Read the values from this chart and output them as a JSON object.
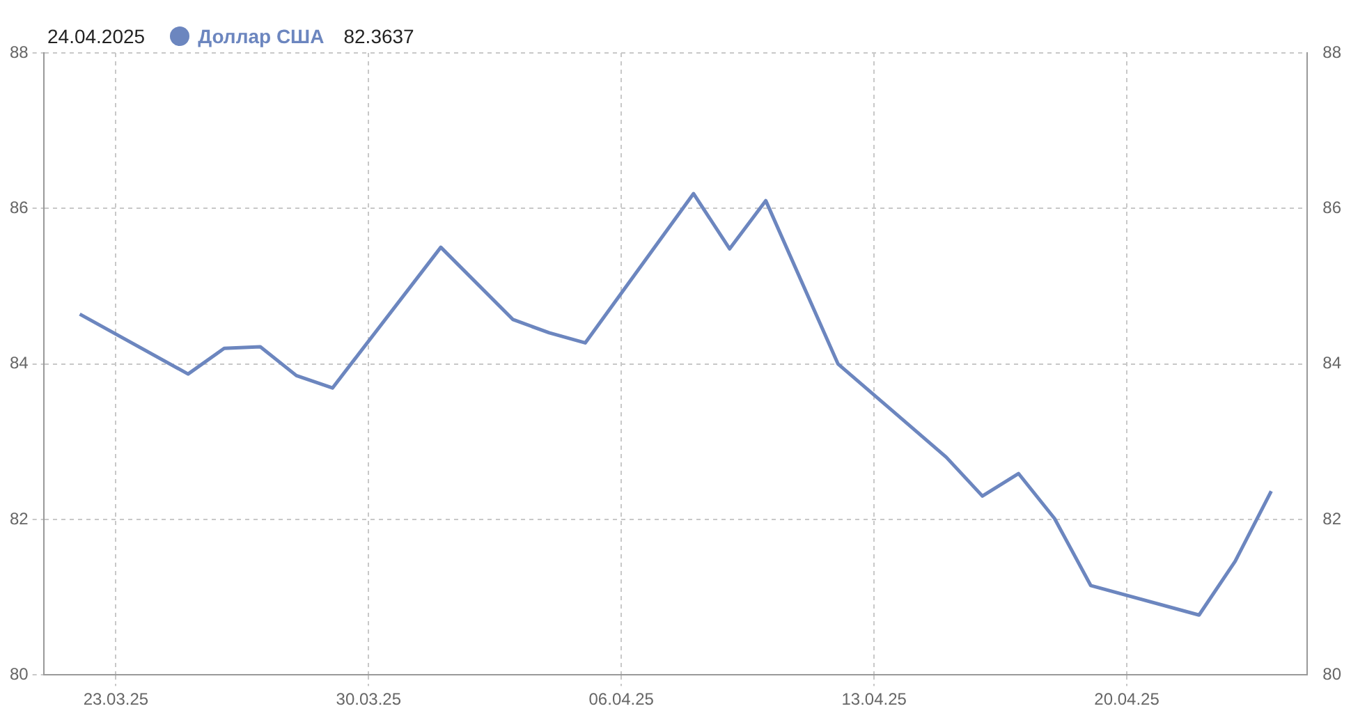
{
  "chart_data": {
    "type": "line",
    "legend": "top left",
    "annotations": [
      "24.04.2025",
      "82.3637"
    ],
    "x": [
      "2025-03-22",
      "2025-03-25",
      "2025-03-26",
      "2025-03-27",
      "2025-03-28",
      "2025-03-29",
      "2025-04-01",
      "2025-04-03",
      "2025-04-04",
      "2025-04-05",
      "2025-04-08",
      "2025-04-09",
      "2025-04-10",
      "2025-04-12",
      "2025-04-15",
      "2025-04-16",
      "2025-04-17",
      "2025-04-18",
      "2025-04-19",
      "2025-04-22",
      "2025-04-23",
      "2025-04-24"
    ],
    "series": [
      {
        "name": "Доллар США",
        "color": "#6c86bf",
        "values": [
          84.64,
          83.87,
          84.2,
          84.22,
          83.85,
          83.69,
          85.5,
          84.57,
          84.4,
          84.27,
          86.19,
          85.48,
          86.1,
          84.0,
          82.8,
          82.3,
          82.59,
          82.01,
          81.15,
          80.77,
          81.46,
          82.3637
        ]
      }
    ],
    "xlim": [
      "2025-03-21",
      "2025-04-25"
    ],
    "xticks": [
      {
        "value": "2025-03-23",
        "label": "23.03.25"
      },
      {
        "value": "2025-03-30",
        "label": "30.03.25"
      },
      {
        "value": "2025-04-06",
        "label": "06.04.25"
      },
      {
        "value": "2025-04-13",
        "label": "13.04.25"
      },
      {
        "value": "2025-04-20",
        "label": "20.04.25"
      }
    ],
    "ylim": [
      80,
      88
    ],
    "yticks": [
      80,
      82,
      84,
      86,
      88
    ],
    "y2lim": [
      80,
      88
    ],
    "y2ticks": [
      80,
      82,
      84,
      86,
      88
    ],
    "grid": true,
    "marker": "none",
    "line_style": "solid"
  }
}
